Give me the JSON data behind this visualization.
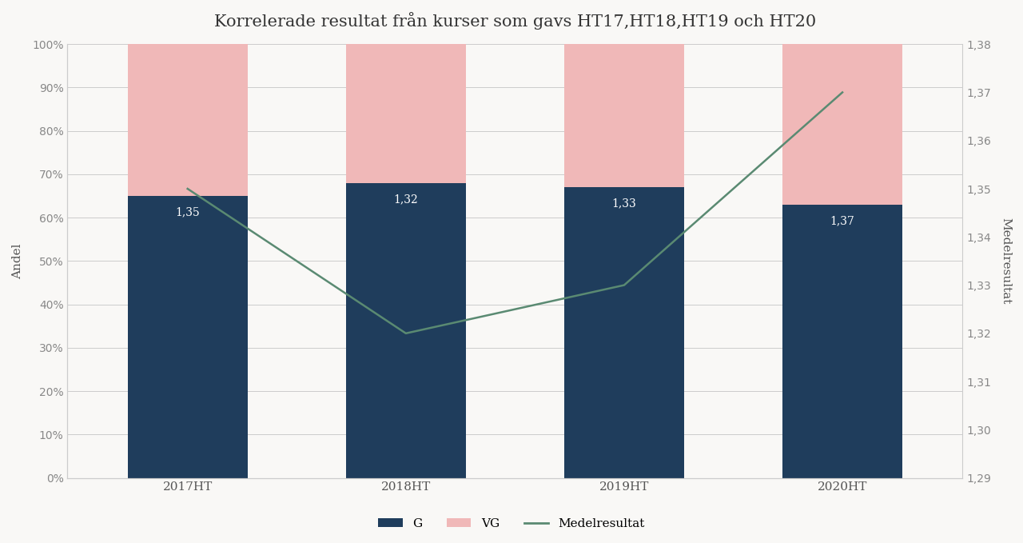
{
  "title": "Korrelerade resultat från kurser som gavs HT17,HT18,HT19 och HT20",
  "categories": [
    "2017HT",
    "2018HT",
    "2019HT",
    "2020HT"
  ],
  "g_values": [
    0.65,
    0.68,
    0.67,
    0.63
  ],
  "vg_values": [
    0.35,
    0.32,
    0.33,
    0.37
  ],
  "medelresultat": [
    1.35,
    1.32,
    1.33,
    1.37
  ],
  "bar_color_g": "#1f3d5c",
  "bar_color_vg": "#f0b8b8",
  "line_color": "#5a8a72",
  "background_color": "#f9f8f6",
  "ylabel_left": "Andel",
  "ylabel_right": "Medelresultat",
  "ylim_left": [
    0,
    1.0
  ],
  "ylim_right": [
    1.29,
    1.38
  ],
  "yticks_left": [
    0.0,
    0.1,
    0.2,
    0.3,
    0.4,
    0.5,
    0.6,
    0.7,
    0.8,
    0.9,
    1.0
  ],
  "yticks_right": [
    1.29,
    1.3,
    1.31,
    1.32,
    1.33,
    1.34,
    1.35,
    1.36,
    1.37,
    1.38
  ],
  "title_fontsize": 15,
  "axis_fontsize": 11,
  "tick_fontsize": 10,
  "bar_width": 0.55,
  "legend_labels": [
    "G",
    "VG",
    "Medelresultat"
  ],
  "annotations": [
    {
      "x": 0,
      "g": 0.65,
      "text": "1,35",
      "color": "#ffffff"
    },
    {
      "x": 1,
      "g": 0.68,
      "text": "1,32",
      "color": "#ffffff"
    },
    {
      "x": 2,
      "g": 0.67,
      "text": "1,33",
      "color": "#ffffff"
    },
    {
      "x": 3,
      "g": 0.63,
      "text": "1,37",
      "color": "#ffffff"
    }
  ]
}
